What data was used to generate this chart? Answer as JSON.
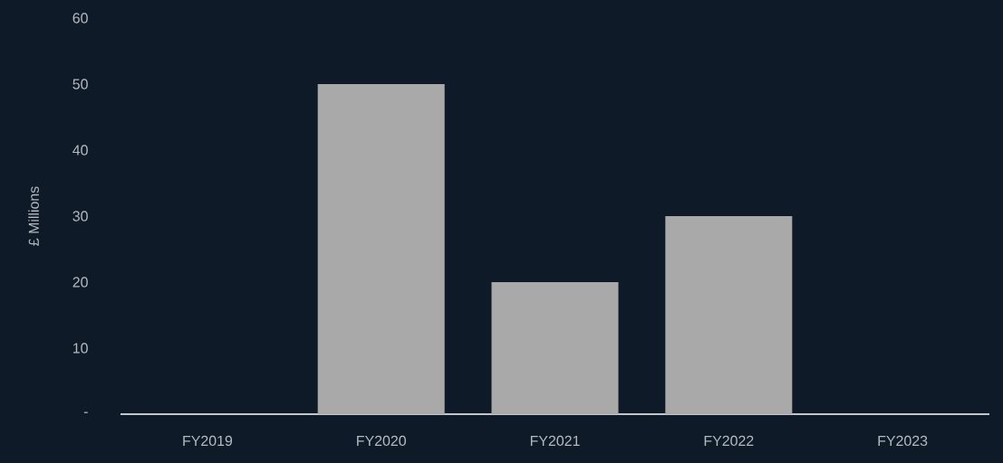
{
  "chart_data": {
    "type": "bar",
    "ylabel": "£ Millions",
    "categories": [
      "FY2019",
      "FY2020",
      "FY2021",
      "FY2022",
      "FY2023"
    ],
    "values": [
      0,
      50,
      20,
      30,
      0
    ],
    "color": "#a9a9a9",
    "ylim": [
      0,
      60
    ],
    "yticks": [
      {
        "value": 0,
        "label": "-"
      },
      10,
      20,
      30,
      40,
      50,
      60
    ]
  }
}
